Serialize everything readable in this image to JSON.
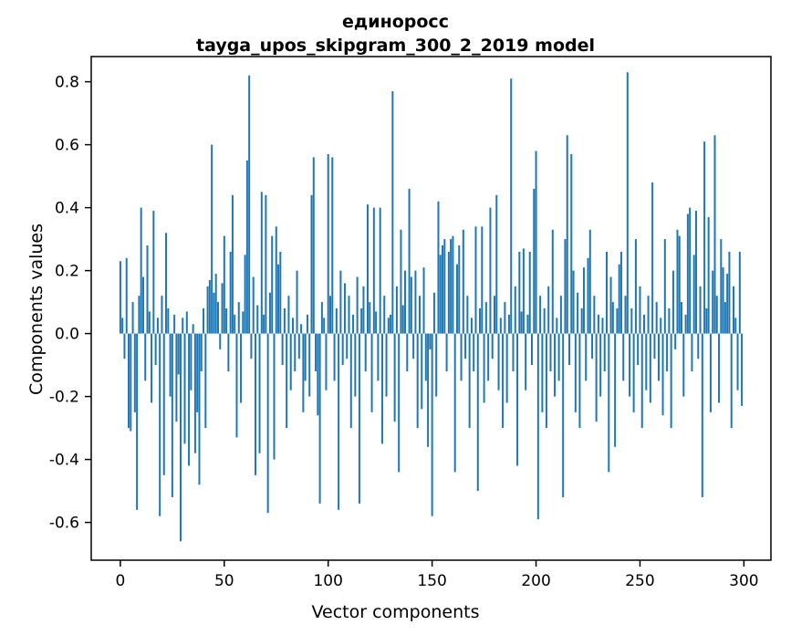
{
  "chart_data": {
    "type": "bar",
    "title": "единоросс",
    "subtitle": "tayga_upos_skipgram_300_2_2019 model",
    "xlabel": "Vector components",
    "ylabel": "Components values",
    "bar_color": "#1f77b4",
    "x_ticks": [
      0,
      50,
      100,
      150,
      200,
      250,
      300
    ],
    "y_ticks": [
      -0.6,
      -0.4,
      -0.2,
      0.0,
      0.2,
      0.4,
      0.6,
      0.8
    ],
    "xlim": [
      -14,
      313
    ],
    "ylim": [
      -0.72,
      0.88
    ],
    "grid": false,
    "legend": "none",
    "values": [
      0.23,
      0.05,
      -0.08,
      0.24,
      -0.3,
      -0.31,
      0.1,
      -0.25,
      -0.56,
      0.12,
      0.4,
      0.18,
      -0.15,
      0.28,
      0.07,
      -0.22,
      0.39,
      -0.1,
      0.05,
      -0.58,
      0.12,
      -0.45,
      0.32,
      0.08,
      -0.2,
      -0.52,
      0.06,
      -0.28,
      -0.13,
      -0.66,
      0.05,
      -0.35,
      0.07,
      -0.42,
      -0.18,
      0.03,
      -0.38,
      -0.25,
      -0.48,
      -0.12,
      0.08,
      -0.3,
      0.15,
      0.17,
      0.6,
      0.13,
      0.19,
      0.1,
      -0.05,
      0.16,
      0.31,
      0.08,
      -0.12,
      0.26,
      0.44,
      0.06,
      -0.33,
      0.1,
      -0.22,
      0.07,
      0.25,
      0.55,
      0.82,
      -0.08,
      0.18,
      -0.45,
      0.09,
      -0.38,
      0.45,
      0.06,
      0.44,
      -0.57,
      0.13,
      0.31,
      -0.4,
      0.34,
      0.22,
      0.26,
      -0.1,
      0.08,
      -0.3,
      0.12,
      -0.18,
      0.05,
      -0.12,
      0.2,
      -0.08,
      0.03,
      -0.25,
      -0.15,
      0.06,
      -0.2,
      0.44,
      0.56,
      -0.12,
      -0.26,
      -0.54,
      0.1,
      0.05,
      -0.18,
      0.57,
      0.12,
      0.56,
      -0.15,
      0.08,
      -0.56,
      0.2,
      -0.1,
      0.16,
      -0.08,
      0.12,
      -0.3,
      0.06,
      -0.2,
      0.18,
      -0.54,
      0.08,
      0.15,
      -0.12,
      0.41,
      0.1,
      -0.25,
      0.4,
      0.07,
      -0.15,
      0.4,
      -0.35,
      0.12,
      -0.2,
      0.05,
      0.06,
      0.77,
      -0.28,
      0.15,
      -0.44,
      0.33,
      0.09,
      0.2,
      -0.12,
      0.46,
      0.18,
      -0.08,
      0.2,
      -0.3,
      0.12,
      -0.24,
      0.21,
      -0.15,
      -0.36,
      -0.05,
      -0.58,
      0.13,
      -0.2,
      0.42,
      0.25,
      0.28,
      0.3,
      -0.12,
      0.26,
      0.3,
      0.31,
      -0.44,
      0.22,
      0.28,
      -0.15,
      0.33,
      -0.08,
      0.12,
      -0.3,
      0.05,
      -0.12,
      0.34,
      -0.5,
      0.08,
      0.34,
      -0.22,
      0.1,
      -0.15,
      0.4,
      -0.08,
      0.12,
      0.44,
      -0.18,
      0.05,
      -0.3,
      0.1,
      -0.22,
      0.06,
      0.81,
      -0.12,
      0.15,
      -0.42,
      0.26,
      0.07,
      0.27,
      -0.18,
      0.06,
      0.26,
      -0.1,
      0.46,
      0.58,
      -0.59,
      0.12,
      -0.25,
      0.08,
      -0.3,
      0.15,
      -0.12,
      0.33,
      -0.2,
      0.05,
      -0.15,
      0.12,
      -0.52,
      0.3,
      0.63,
      -0.1,
      0.57,
      0.2,
      -0.25,
      0.13,
      -0.3,
      0.08,
      0.21,
      -0.15,
      0.24,
      0.33,
      -0.08,
      0.12,
      -0.28,
      0.06,
      -0.2,
      0.05,
      -0.12,
      0.26,
      -0.44,
      0.18,
      0.1,
      -0.36,
      0.08,
      0.22,
      0.26,
      -0.15,
      0.12,
      0.83,
      -0.2,
      0.08,
      -0.25,
      0.3,
      -0.1,
      0.15,
      -0.3,
      0.06,
      -0.18,
      0.12,
      -0.22,
      0.48,
      -0.08,
      0.1,
      -0.15,
      0.05,
      -0.26,
      0.3,
      -0.12,
      0.08,
      -0.3,
      0.2,
      -0.05,
      0.33,
      0.31,
      0.1,
      -0.2,
      0.06,
      0.38,
      0.4,
      -0.12,
      0.25,
      0.39,
      -0.08,
      0.15,
      -0.52,
      0.61,
      0.08,
      0.37,
      -0.25,
      0.2,
      0.63,
      0.12,
      -0.22,
      0.3,
      0.21,
      0.1,
      0.19,
      0.26,
      -0.3,
      0.15,
      0.05,
      -0.18,
      0.26,
      -0.23
    ]
  }
}
